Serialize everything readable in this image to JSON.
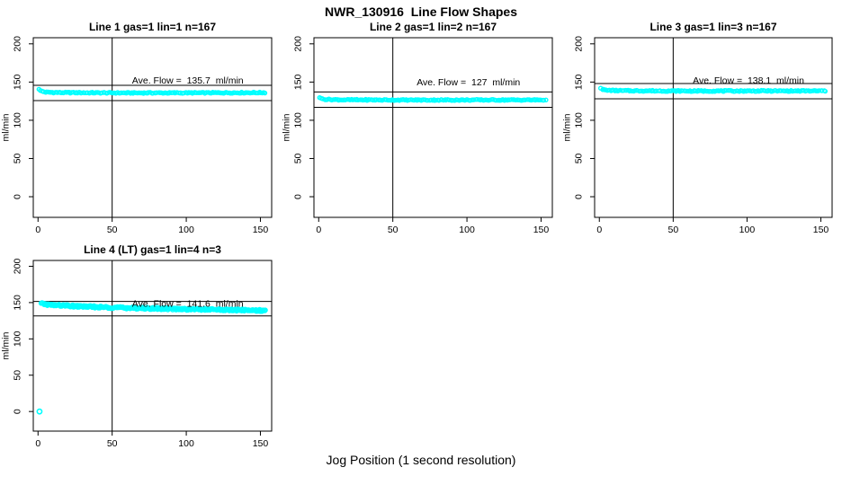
{
  "figure": {
    "title": "NWR_130916  Line Flow Shapes",
    "x_axis_label": "Jog Position (1 second resolution)"
  },
  "colors": {
    "points": "#00ffff",
    "axis": "#000000",
    "background": "#ffffff"
  },
  "chart_data": [
    {
      "type": "scatter",
      "title": "Line 1 gas=1 lin=1 n=167",
      "n": 167,
      "ave_flow_ml_min": 135.7,
      "ave_flow_label": "Ave. Flow =  135.7  ml/min",
      "label_anchor": {
        "x": 101,
        "y": 148
      },
      "ylabel": "ml/min",
      "xlim": [
        0,
        157
      ],
      "ylim": [
        0,
        200
      ],
      "xticks": [
        0,
        50,
        100,
        150
      ],
      "yticks": [
        0,
        50,
        100,
        150,
        200
      ],
      "vline_x": 50,
      "hlines": [
        145.7,
        125.7
      ],
      "series": {
        "profile": [
          [
            1,
            141
          ],
          [
            2,
            138.5
          ],
          [
            5,
            136.8
          ],
          [
            15,
            136.2
          ],
          [
            60,
            135.8
          ],
          [
            110,
            135.9
          ],
          [
            153,
            136.2
          ]
        ],
        "points": 160,
        "jitter": 0.7,
        "radius": 2.0
      },
      "outliers": []
    },
    {
      "type": "scatter",
      "title": "Line 2 gas=1 lin=2 n=167",
      "n": 167,
      "ave_flow_ml_min": 127,
      "ave_flow_label": "Ave. Flow =  127  ml/min",
      "label_anchor": {
        "x": 101,
        "y": 146
      },
      "ylabel": "ml/min",
      "xlim": [
        0,
        157
      ],
      "ylim": [
        0,
        200
      ],
      "xticks": [
        0,
        50,
        100,
        150
      ],
      "yticks": [
        0,
        50,
        100,
        150,
        200
      ],
      "vline_x": 50,
      "hlines": [
        137,
        117
      ],
      "series": {
        "profile": [
          [
            1,
            130
          ],
          [
            2,
            128.3
          ],
          [
            5,
            127.3
          ],
          [
            15,
            126.8
          ],
          [
            60,
            126.5
          ],
          [
            110,
            126.6
          ],
          [
            153,
            126.6
          ]
        ],
        "points": 160,
        "jitter": 0.7,
        "radius": 2.0
      },
      "outliers": []
    },
    {
      "type": "scatter",
      "title": "Line 3 gas=1 lin=3 n=167",
      "n": 167,
      "ave_flow_ml_min": 138.1,
      "ave_flow_label": "Ave. Flow =  138.1  ml/min",
      "label_anchor": {
        "x": 101,
        "y": 148
      },
      "ylabel": "ml/min",
      "xlim": [
        0,
        157
      ],
      "ylim": [
        0,
        200
      ],
      "xticks": [
        0,
        50,
        100,
        150
      ],
      "yticks": [
        0,
        50,
        100,
        150,
        200
      ],
      "vline_x": 50,
      "hlines": [
        148.1,
        128.1
      ],
      "series": {
        "profile": [
          [
            1,
            142.5
          ],
          [
            2,
            140.5
          ],
          [
            5,
            139.3
          ],
          [
            15,
            138.7
          ],
          [
            60,
            138.3
          ],
          [
            110,
            138.4
          ],
          [
            153,
            138.4
          ]
        ],
        "points": 160,
        "jitter": 0.7,
        "radius": 2.0
      },
      "outliers": []
    },
    {
      "type": "scatter",
      "title": "Line 4 (LT) gas=1 lin=4 n=3",
      "n": 3,
      "ave_flow_ml_min": 141.6,
      "ave_flow_label": "Ave. Flow =  141.6  ml/min",
      "label_anchor": {
        "x": 101,
        "y": 144
      },
      "ylabel": "ml/min",
      "xlim": [
        0,
        157
      ],
      "ylim": [
        0,
        200
      ],
      "xticks": [
        0,
        50,
        100,
        150
      ],
      "yticks": [
        0,
        50,
        100,
        150,
        200
      ],
      "vline_x": 50,
      "hlines": [
        151.6,
        131.6
      ],
      "series": {
        "profile": [
          [
            2,
            148.5
          ],
          [
            8,
            146.8
          ],
          [
            25,
            145
          ],
          [
            50,
            143.3
          ],
          [
            80,
            141.8
          ],
          [
            110,
            140.6
          ],
          [
            140,
            139.6
          ],
          [
            153,
            139
          ]
        ],
        "points": 320,
        "jitter": 1.4,
        "radius": 2.2
      },
      "outliers": [
        [
          1,
          0
        ]
      ]
    }
  ]
}
